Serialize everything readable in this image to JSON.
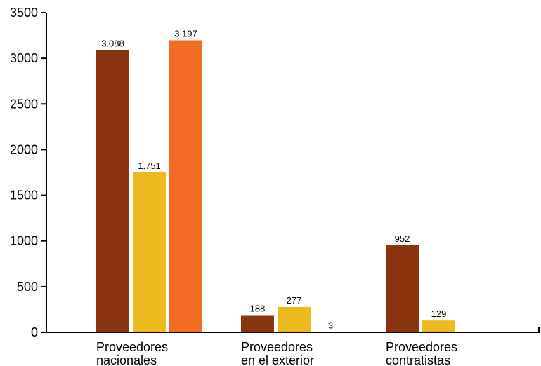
{
  "chart_data": {
    "type": "bar",
    "categories": [
      [
        "Proveedores",
        "nacionales"
      ],
      [
        "Proveedores",
        "en el exterior"
      ],
      [
        "Proveedores",
        "contratistas"
      ]
    ],
    "series": [
      {
        "color": "#8B3510",
        "values": [
          3088,
          188,
          952
        ],
        "labels": [
          "3.088",
          "188",
          "952"
        ]
      },
      {
        "color": "#ECBA1E",
        "values": [
          1751,
          277,
          129
        ],
        "labels": [
          "1.751",
          "277",
          "129"
        ]
      },
      {
        "color": "#F26C24",
        "values": [
          3197,
          3,
          null
        ],
        "labels": [
          "3.197",
          "3",
          ""
        ]
      }
    ],
    "ylim": [
      0,
      3500
    ],
    "yticks": [
      "0",
      "500",
      "1000",
      "1500",
      "2000",
      "2500",
      "3000",
      "3500"
    ],
    "grid": false,
    "legend": "none"
  }
}
